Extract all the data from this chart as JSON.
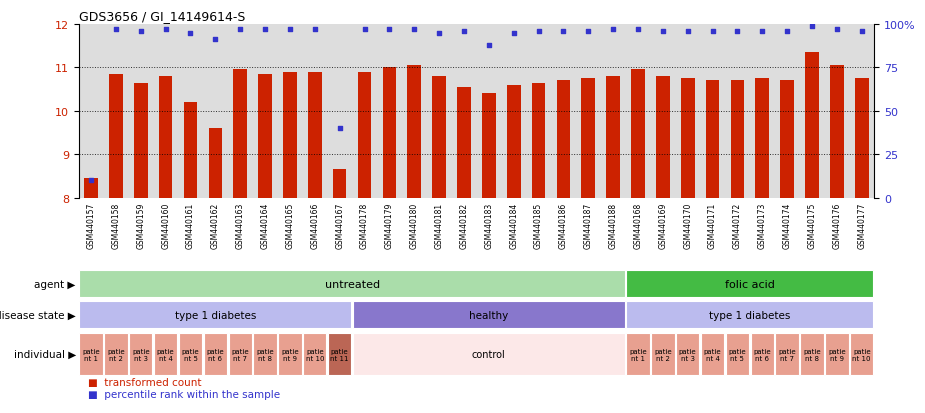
{
  "title": "GDS3656 / GI_14149614-S",
  "samples": [
    "GSM440157",
    "GSM440158",
    "GSM440159",
    "GSM440160",
    "GSM440161",
    "GSM440162",
    "GSM440163",
    "GSM440164",
    "GSM440165",
    "GSM440166",
    "GSM440167",
    "GSM440178",
    "GSM440179",
    "GSM440180",
    "GSM440181",
    "GSM440182",
    "GSM440183",
    "GSM440184",
    "GSM440185",
    "GSM440186",
    "GSM440187",
    "GSM440188",
    "GSM440168",
    "GSM440169",
    "GSM440170",
    "GSM440171",
    "GSM440172",
    "GSM440173",
    "GSM440174",
    "GSM440175",
    "GSM440176",
    "GSM440177"
  ],
  "bar_values": [
    8.45,
    10.85,
    10.65,
    10.8,
    10.2,
    9.6,
    10.95,
    10.85,
    10.9,
    10.9,
    8.65,
    10.9,
    11.0,
    11.05,
    10.8,
    10.55,
    10.4,
    10.6,
    10.65,
    10.7,
    10.75,
    10.8,
    10.95,
    10.8,
    10.75,
    10.7,
    10.7,
    10.75,
    10.7,
    11.35,
    11.05,
    10.75
  ],
  "percentile_values": [
    10,
    97,
    96,
    97,
    95,
    91,
    97,
    97,
    97,
    97,
    40,
    97,
    97,
    97,
    95,
    96,
    88,
    95,
    96,
    96,
    96,
    97,
    97,
    96,
    96,
    96,
    96,
    96,
    96,
    99,
    97,
    96
  ],
  "bar_color": "#cc2200",
  "dot_color": "#3333cc",
  "ylim_left": [
    8,
    12
  ],
  "ylim_right": [
    0,
    100
  ],
  "yticks_left": [
    8,
    9,
    10,
    11,
    12
  ],
  "yticks_right": [
    0,
    25,
    50,
    75,
    100
  ],
  "ytick_labels_right": [
    "0",
    "25",
    "50",
    "75",
    "100%"
  ],
  "agent_cells": [
    {
      "start": 0,
      "end": 22,
      "text": "untreated",
      "color": "#aaddaa"
    },
    {
      "start": 22,
      "end": 32,
      "text": "folic acid",
      "color": "#44bb44"
    }
  ],
  "disease_cells": [
    {
      "start": 0,
      "end": 11,
      "text": "type 1 diabetes",
      "color": "#bbbbee"
    },
    {
      "start": 11,
      "end": 22,
      "text": "healthy",
      "color": "#8877cc"
    },
    {
      "start": 22,
      "end": 32,
      "text": "type 1 diabetes",
      "color": "#bbbbee"
    }
  ],
  "individual_cells": [
    {
      "start": 0,
      "end": 1,
      "text": "patie\nnt 1",
      "color": "#e8a090"
    },
    {
      "start": 1,
      "end": 2,
      "text": "patie\nnt 2",
      "color": "#e8a090"
    },
    {
      "start": 2,
      "end": 3,
      "text": "patie\nnt 3",
      "color": "#e8a090"
    },
    {
      "start": 3,
      "end": 4,
      "text": "patie\nnt 4",
      "color": "#e8a090"
    },
    {
      "start": 4,
      "end": 5,
      "text": "patie\nnt 5",
      "color": "#e8a090"
    },
    {
      "start": 5,
      "end": 6,
      "text": "patie\nnt 6",
      "color": "#e8a090"
    },
    {
      "start": 6,
      "end": 7,
      "text": "patie\nnt 7",
      "color": "#e8a090"
    },
    {
      "start": 7,
      "end": 8,
      "text": "patie\nnt 8",
      "color": "#e8a090"
    },
    {
      "start": 8,
      "end": 9,
      "text": "patie\nnt 9",
      "color": "#e8a090"
    },
    {
      "start": 9,
      "end": 10,
      "text": "patie\nnt 10",
      "color": "#e8a090"
    },
    {
      "start": 10,
      "end": 11,
      "text": "patie\nnt 11",
      "color": "#bb6655"
    },
    {
      "start": 11,
      "end": 22,
      "text": "control",
      "color": "#fce8e8"
    },
    {
      "start": 22,
      "end": 23,
      "text": "patie\nnt 1",
      "color": "#e8a090"
    },
    {
      "start": 23,
      "end": 24,
      "text": "patie\nnt 2",
      "color": "#e8a090"
    },
    {
      "start": 24,
      "end": 25,
      "text": "patie\nnt 3",
      "color": "#e8a090"
    },
    {
      "start": 25,
      "end": 26,
      "text": "patie\nnt 4",
      "color": "#e8a090"
    },
    {
      "start": 26,
      "end": 27,
      "text": "patie\nnt 5",
      "color": "#e8a090"
    },
    {
      "start": 27,
      "end": 28,
      "text": "patie\nnt 6",
      "color": "#e8a090"
    },
    {
      "start": 28,
      "end": 29,
      "text": "patie\nnt 7",
      "color": "#e8a090"
    },
    {
      "start": 29,
      "end": 30,
      "text": "patie\nnt 8",
      "color": "#e8a090"
    },
    {
      "start": 30,
      "end": 31,
      "text": "patie\nnt 9",
      "color": "#e8a090"
    },
    {
      "start": 31,
      "end": 32,
      "text": "patie\nnt 10",
      "color": "#e8a090"
    }
  ],
  "legend": [
    {
      "color": "#cc2200",
      "label": "transformed count"
    },
    {
      "color": "#3333cc",
      "label": "percentile rank within the sample"
    }
  ],
  "background_color": "#ffffff",
  "axis_bg": "#dddddd"
}
